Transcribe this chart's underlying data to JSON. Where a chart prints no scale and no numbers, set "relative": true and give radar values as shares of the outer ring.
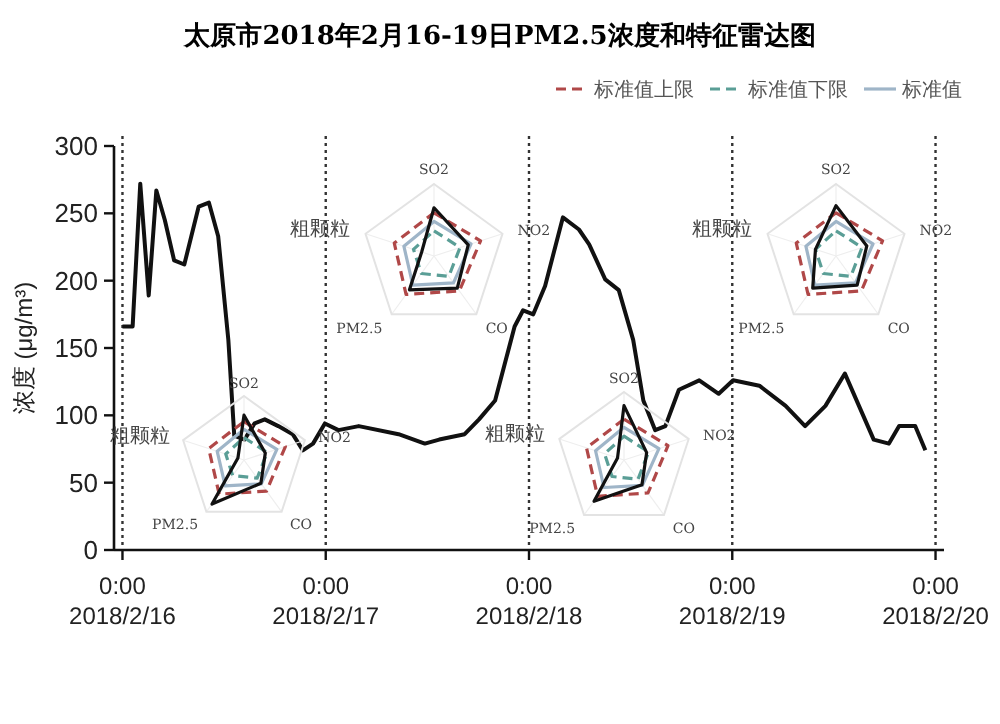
{
  "chart_data": [
    {
      "type": "line",
      "title": "太原市2018年2月16-19日PM2.5浓度和特征雷达图",
      "ylabel": "浓度 (μg/m³)",
      "x": [
        "2018-02-16T00:00",
        "2018-02-16T01:12",
        "2018-02-16T02:06",
        "2018-02-16T03:06",
        "2018-02-16T04:00",
        "2018-02-16T05:00",
        "2018-02-16T06:06",
        "2018-02-16T07:18",
        "2018-02-16T09:00",
        "2018-02-16T10:12",
        "2018-02-16T11:18",
        "2018-02-16T12:30",
        "2018-02-16T13:12",
        "2018-02-16T14:24",
        "2018-02-16T15:36",
        "2018-02-16T16:48",
        "2018-02-16T18:24",
        "2018-02-16T20:06",
        "2018-02-16T21:18",
        "2018-02-16T22:30",
        "2018-02-16T23:54",
        "2018-02-17T01:30",
        "2018-02-17T03:54",
        "2018-02-17T08:36",
        "2018-02-17T11:42",
        "2018-02-17T13:24",
        "2018-02-17T16:24",
        "2018-02-17T18:06",
        "2018-02-17T20:00",
        "2018-02-17T22:18",
        "2018-02-17T23:18",
        "2018-02-18T00:30",
        "2018-02-18T01:54",
        "2018-02-18T04:00",
        "2018-02-18T05:54",
        "2018-02-18T07:06",
        "2018-02-18T09:00",
        "2018-02-18T10:36",
        "2018-02-18T12:18",
        "2018-02-18T13:30",
        "2018-02-18T14:54",
        "2018-02-18T16:06",
        "2018-02-18T17:42",
        "2018-02-18T20:06",
        "2018-02-18T22:24",
        "2018-02-19T00:06",
        "2018-02-19T03:12",
        "2018-02-19T06:18",
        "2018-02-19T08:36",
        "2018-02-19T11:00",
        "2018-02-19T13:18",
        "2018-02-19T16:42",
        "2018-02-19T18:30",
        "2018-02-19T19:42",
        "2018-02-19T21:36",
        "2018-02-19T22:48"
      ],
      "series": [
        {
          "color": "#111111",
          "values": [
            166,
            166,
            272,
            189,
            267,
            245,
            215,
            212,
            255,
            258,
            233,
            156,
            85,
            82,
            94,
            97,
            92,
            86,
            74,
            79,
            94,
            89,
            92,
            86,
            79,
            82,
            86,
            97,
            111,
            166,
            178,
            175,
            196,
            247,
            238,
            227,
            201,
            193,
            156,
            111,
            89,
            92,
            119,
            126,
            116,
            126,
            122,
            107,
            92,
            107,
            131,
            82,
            79,
            92,
            92,
            74
          ]
        }
      ],
      "xlim": [
        "2018-02-15T23:00",
        "2018-02-20T01:00"
      ],
      "ylim": [
        0,
        300
      ],
      "yticks": [
        0,
        50,
        100,
        150,
        200,
        250,
        300
      ],
      "xticks": [
        {
          "value": "2018-02-16T00:00",
          "label": "0:00\n2018/2/16"
        },
        {
          "value": "2018-02-17T00:00",
          "label": "0:00\n2018/2/17"
        },
        {
          "value": "2018-02-18T00:00",
          "label": "0:00\n2018/2/18"
        },
        {
          "value": "2018-02-19T00:00",
          "label": "0:00\n2018/2/19"
        },
        {
          "value": "2018-02-20T00:00",
          "label": "0:00\n2018/2/20"
        }
      ],
      "ref_lines": [
        {
          "axis": "x",
          "value": "2018-02-16T00:00",
          "line_style": "dotted",
          "color": "#333333"
        },
        {
          "axis": "x",
          "value": "2018-02-17T00:00",
          "line_style": "dotted",
          "color": "#333333"
        },
        {
          "axis": "x",
          "value": "2018-02-18T00:00",
          "line_style": "dotted",
          "color": "#333333"
        },
        {
          "axis": "x",
          "value": "2018-02-19T00:00",
          "line_style": "dotted",
          "color": "#333333"
        },
        {
          "axis": "x",
          "value": "2018-02-20T00:00",
          "line_style": "dotted",
          "color": "#333333"
        }
      ],
      "grid": false,
      "legend": false,
      "marker": "none",
      "line_style": "solid"
    },
    {
      "type": "radar",
      "relative": true,
      "categories": [
        "SO2",
        "NO2",
        "CO",
        "PM2.5",
        "粗颗粒"
      ],
      "series": [
        {
          "color": "#b04848",
          "line_style": "dashed",
          "values": [
            0.6,
            0.68,
            0.6,
            0.66,
            0.58
          ]
        },
        {
          "color": "#9fb5c8",
          "line_style": "solid",
          "values": [
            0.48,
            0.54,
            0.46,
            0.5,
            0.44
          ]
        },
        {
          "color": "#5a9e96",
          "line_style": "dashed",
          "values": [
            0.35,
            0.38,
            0.35,
            0.3,
            0.3
          ]
        },
        {
          "color": "#111111",
          "line_style": "solid",
          "values": [
            0.67,
            0.5,
            0.55,
            0.58,
            0.18
          ]
        }
      ]
    },
    {
      "type": "radar",
      "relative": true,
      "categories": [
        "SO2",
        "NO2",
        "CO",
        "PM2.5",
        "粗颗粒"
      ],
      "legend": "top",
      "series": [
        {
          "name": "标准值上限",
          "color": "#b04848",
          "line_style": "dashed",
          "values": [
            0.6,
            0.68,
            0.6,
            0.66,
            0.58
          ]
        },
        {
          "name": "标准值下限",
          "color": "#5a9e96",
          "line_style": "dashed",
          "values": [
            0.35,
            0.38,
            0.35,
            0.3,
            0.3
          ]
        },
        {
          "name": "标准值",
          "color": "#9fb5c8",
          "line_style": "solid",
          "values": [
            0.48,
            0.54,
            0.46,
            0.5,
            0.44
          ]
        },
        {
          "color": "#111111",
          "line_style": "solid",
          "values": [
            0.7,
            0.45,
            0.5,
            0.55,
            0.3
          ]
        }
      ]
    },
    {
      "type": "radar",
      "relative": true,
      "categories": [
        "SO2",
        "NO2",
        "CO",
        "PM2.5",
        "粗颗粒"
      ],
      "series": [
        {
          "color": "#b04848",
          "line_style": "dashed",
          "values": [
            0.6,
            0.68,
            0.6,
            0.66,
            0.58
          ]
        },
        {
          "color": "#9fb5c8",
          "line_style": "solid",
          "values": [
            0.48,
            0.54,
            0.46,
            0.5,
            0.44
          ]
        },
        {
          "color": "#5a9e96",
          "line_style": "dashed",
          "values": [
            0.35,
            0.38,
            0.35,
            0.3,
            0.3
          ]
        },
        {
          "color": "#111111",
          "line_style": "solid",
          "values": [
            0.7,
            0.35,
            0.45,
            0.85,
            0.1
          ]
        }
      ]
    },
    {
      "type": "radar",
      "relative": true,
      "categories": [
        "SO2",
        "NO2",
        "CO",
        "PM2.5",
        "粗颗粒"
      ],
      "series": [
        {
          "color": "#b04848",
          "line_style": "dashed",
          "values": [
            0.6,
            0.68,
            0.6,
            0.66,
            0.58
          ]
        },
        {
          "color": "#9fb5c8",
          "line_style": "solid",
          "values": [
            0.48,
            0.54,
            0.46,
            0.5,
            0.44
          ]
        },
        {
          "color": "#5a9e96",
          "line_style": "dashed",
          "values": [
            0.35,
            0.38,
            0.35,
            0.3,
            0.3
          ]
        },
        {
          "color": "#111111",
          "line_style": "solid",
          "values": [
            0.8,
            0.35,
            0.45,
            0.75,
            0.1
          ]
        }
      ]
    }
  ]
}
